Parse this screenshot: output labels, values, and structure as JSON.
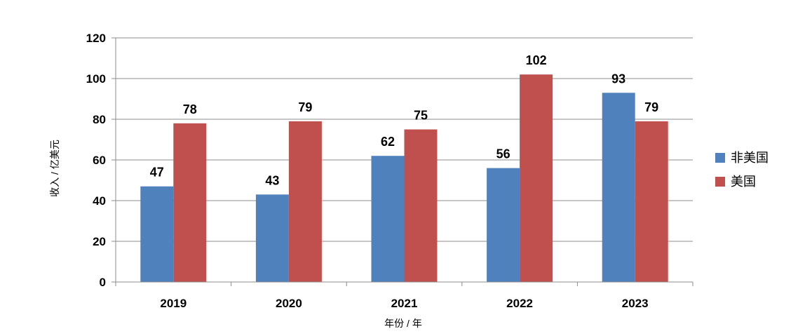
{
  "chart_data": {
    "type": "bar",
    "categories": [
      "2019",
      "2020",
      "2021",
      "2022",
      "2023"
    ],
    "series": [
      {
        "name": "非美国",
        "color": "#4F81BD",
        "values": [
          47,
          43,
          62,
          56,
          93
        ]
      },
      {
        "name": "美国",
        "color": "#C0504D",
        "values": [
          78,
          79,
          75,
          102,
          79
        ]
      }
    ],
    "title": "",
    "xlabel": "年份 / 年",
    "ylabel": "收入 / 亿美元",
    "ylim": [
      0,
      120
    ],
    "yticks": [
      "0",
      "20",
      "40",
      "60",
      "80",
      "100",
      "120"
    ],
    "grid": true,
    "legend_position": "right"
  }
}
